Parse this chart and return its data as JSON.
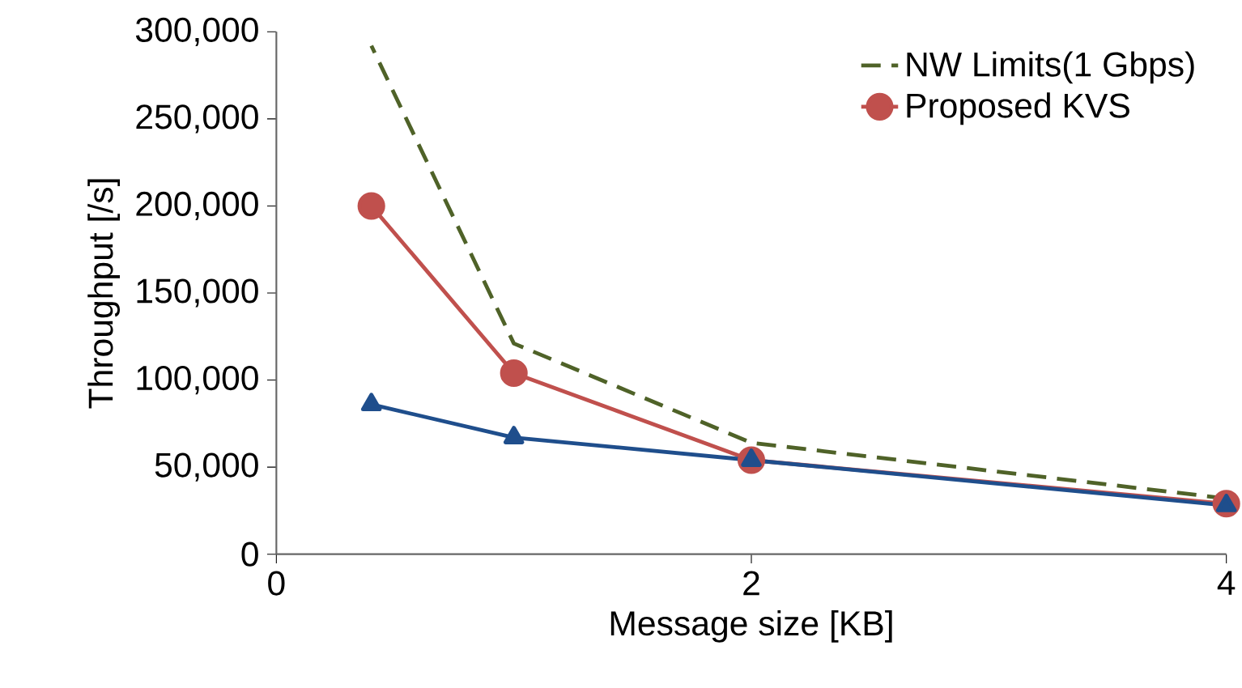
{
  "chart_data": {
    "type": "line",
    "xlabel": "Message size [KB]",
    "ylabel": "Throughput [/s]",
    "xlim": [
      0,
      4
    ],
    "xticks": [
      0,
      2,
      4
    ],
    "ylim": [
      0,
      300000
    ],
    "yticks": [
      {
        "value": 0,
        "label": "0"
      },
      {
        "value": 50000,
        "label": "50,000"
      },
      {
        "value": 100000,
        "label": "100,000"
      },
      {
        "value": 150000,
        "label": "150,000"
      },
      {
        "value": 200000,
        "label": "200,000"
      },
      {
        "value": 250000,
        "label": "250,000"
      },
      {
        "value": 300000,
        "label": "300,000"
      }
    ],
    "legend": "top right",
    "grid": false,
    "series": [
      {
        "name": "NW Limits(1 Gbps)",
        "color": "#4f6228",
        "x": [
          0.4,
          1,
          2,
          4
        ],
        "values": [
          292000,
          121000,
          64000,
          32000
        ],
        "line_style": "dashed",
        "marker": "none"
      },
      {
        "name": "Proposed KVS",
        "color": "#c0504d",
        "x": [
          0.4,
          1,
          2,
          4
        ],
        "values": [
          200000,
          104000,
          54000,
          29000
        ],
        "line_style": "solid",
        "marker": "circle"
      },
      {
        "color": "#1f4e8c",
        "x": [
          0.4,
          1,
          2,
          4
        ],
        "values": [
          86000,
          67000,
          54000,
          28000
        ],
        "line_style": "solid",
        "marker": "triangle"
      }
    ]
  }
}
